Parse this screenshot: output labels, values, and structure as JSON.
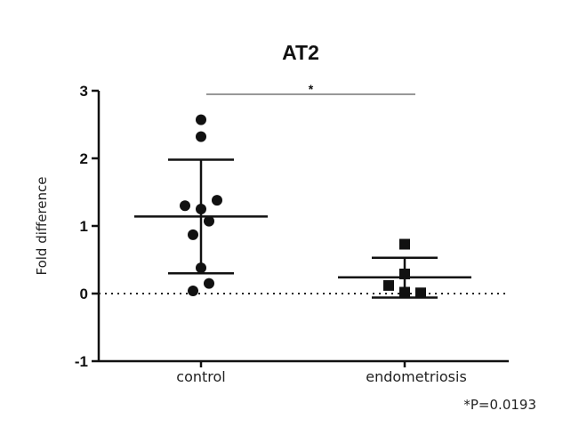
{
  "chart_data": {
    "type": "scatter",
    "title": "AT2",
    "xlabel": "",
    "ylabel": "Fold difference",
    "ylim": [
      -1,
      3
    ],
    "yticks": [
      "-1",
      "0",
      "1",
      "2",
      "3"
    ],
    "reference_line": {
      "y": 0,
      "style": "dotted"
    },
    "categories": [
      "control",
      "endometriosis"
    ],
    "groups": [
      {
        "category": "control",
        "marker": "circle",
        "mean": 1.14,
        "sd_upper": 1.98,
        "sd_lower": 0.3,
        "points": [
          2.57,
          2.32,
          1.38,
          1.3,
          1.25,
          1.07,
          0.87,
          0.38,
          0.15,
          0.04
        ]
      },
      {
        "category": "endometriosis",
        "marker": "square",
        "mean": 0.24,
        "sd_upper": 0.53,
        "sd_lower": -0.06,
        "points": [
          0.73,
          0.29,
          0.12,
          0.02,
          0.01
        ]
      }
    ],
    "significance": {
      "between": [
        "control",
        "endometriosis"
      ],
      "label": "*"
    },
    "annotation": "*P=0.0193"
  }
}
